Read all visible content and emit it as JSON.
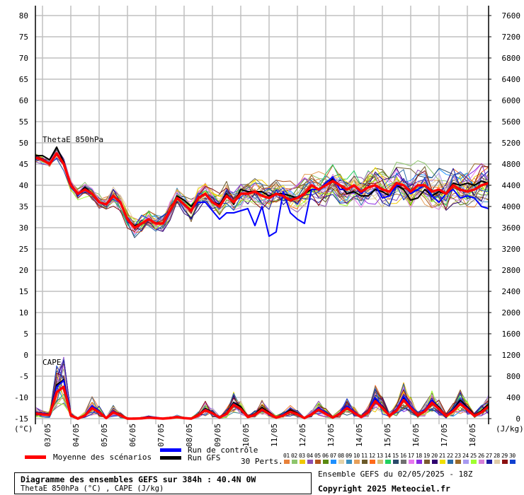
{
  "chart_data": {
    "type": "line",
    "title": "Diagramme des ensembles GEFS sur 384h : 40.4N 0W",
    "subtitle": "ThetaE 850hPa (°C) , CAPE (J/kg)",
    "run_info": "Ensemble GEFS du 02/05/2025 - 18Z",
    "copyright": "Copyright 2025 Meteociel.fr",
    "panel_labels": {
      "thetae": "ThetaE 850hPa",
      "cape": "CAPE"
    },
    "left_axis": {
      "unit": "(°C)",
      "ylim": [
        -15,
        80
      ],
      "ticks": [
        80,
        75,
        70,
        65,
        60,
        55,
        50,
        45,
        40,
        35,
        30,
        25,
        20,
        15,
        10,
        5,
        0,
        -5,
        -10,
        -15
      ]
    },
    "right_axis": {
      "unit": "(J/kg)",
      "ylim": [
        0,
        7600
      ],
      "ticks": [
        7600,
        7200,
        6800,
        6400,
        6000,
        5600,
        5200,
        4800,
        4400,
        4000,
        3600,
        3200,
        2800,
        2400,
        2000,
        1600,
        1200,
        800,
        400,
        0
      ]
    },
    "x_step_hours": 6,
    "x_range_hours": [
      0,
      384
    ],
    "x_tick_labels": [
      "03/05",
      "04/05",
      "05/05",
      "06/05",
      "07/05",
      "08/05",
      "09/05",
      "10/05",
      "11/05",
      "12/05",
      "13/05",
      "14/05",
      "15/05",
      "16/05",
      "17/05",
      "18/05"
    ],
    "grid": true,
    "series": [
      {
        "name": "Moyenne des scénarios",
        "color": "#ff0000",
        "thetae": [
          46.5,
          46,
          45,
          47.5,
          45,
          40,
          38,
          39,
          38,
          36,
          35.5,
          37.5,
          36,
          32,
          30,
          31,
          32,
          31,
          31,
          34,
          37,
          35.5,
          34,
          37,
          38,
          36,
          35,
          37.5,
          36,
          38,
          38,
          38.5,
          37.5,
          37,
          38,
          37.5,
          36.5,
          37,
          38,
          40,
          39,
          40,
          41,
          40,
          39,
          40,
          38.5,
          39.5,
          40,
          39,
          38.5,
          40.5,
          40,
          38.5,
          40,
          40,
          38.5,
          39,
          38,
          40,
          39,
          38.5,
          39,
          40,
          40.5
        ],
        "cape": [
          100,
          80,
          70,
          500,
          600,
          60,
          0,
          60,
          200,
          120,
          10,
          120,
          60,
          0,
          0,
          5,
          20,
          10,
          0,
          10,
          30,
          10,
          0,
          60,
          160,
          100,
          20,
          90,
          260,
          180,
          30,
          70,
          170,
          90,
          20,
          60,
          130,
          80,
          10,
          80,
          170,
          90,
          20,
          90,
          200,
          110,
          30,
          120,
          330,
          200,
          60,
          150,
          350,
          200,
          60,
          140,
          300,
          180,
          50,
          140,
          280,
          170,
          50,
          120,
          230
        ]
      },
      {
        "name": "Run de contrôle",
        "color": "#0000ff",
        "offset_profile": [
          0,
          0,
          0,
          0,
          0,
          0,
          0,
          0,
          0,
          0,
          0,
          0,
          0,
          0,
          0,
          0,
          0,
          0,
          0,
          0,
          0,
          0,
          0,
          -1,
          -2,
          -2,
          -3,
          -4,
          -2.5,
          -4,
          -3.5,
          -8,
          -2.5,
          -9,
          -9,
          1,
          -3,
          -5,
          -7,
          -1,
          0,
          0.5,
          1,
          -1,
          0,
          0,
          -0.5,
          0,
          0,
          -2,
          -1,
          -0.5,
          0,
          -0.5,
          -1,
          0,
          -1,
          -3,
          0,
          -1,
          -2,
          -1,
          -2,
          -5,
          -6
        ]
      },
      {
        "name": "Run GFS",
        "color": "#000000",
        "offset_profile": [
          0.5,
          1,
          1,
          1.5,
          0.5,
          0,
          0,
          0.5,
          0,
          0,
          0,
          0,
          0,
          0,
          0.5,
          0,
          0,
          0,
          0,
          0,
          0.5,
          1,
          1,
          0,
          0,
          0,
          0.5,
          0.5,
          -0.5,
          1,
          0.5,
          0,
          1,
          0.5,
          0,
          0.5,
          1,
          0,
          0,
          -1,
          0,
          0,
          0.5,
          0,
          -1,
          -1.5,
          -1,
          -2,
          -1,
          -0.5,
          -1,
          -0.5,
          -1,
          -2,
          -3,
          -1,
          -1,
          -0.5,
          0,
          0.5,
          1,
          2,
          1,
          1,
          0
        ]
      }
    ],
    "perturbations": {
      "label": "30 Perts.",
      "ids": [
        "01",
        "02",
        "03",
        "04",
        "05",
        "06",
        "07",
        "08",
        "09",
        "10",
        "11",
        "12",
        "13",
        "14",
        "15",
        "16",
        "17",
        "18",
        "19",
        "20",
        "21",
        "22",
        "23",
        "24",
        "25",
        "26",
        "27",
        "28",
        "29",
        "30"
      ],
      "colors": [
        "#e8813a",
        "#8dc56c",
        "#f0c800",
        "#8c4fb0",
        "#b3551c",
        "#5a8a10",
        "#1e90ff",
        "#e6d3a8",
        "#3a8fbf",
        "#e6a05a",
        "#6b5a2a",
        "#ff6a1a",
        "#d4c07a",
        "#20d060",
        "#2a4a6a",
        "#707070",
        "#e878f0",
        "#8a2be2",
        "#7a5a30",
        "#300070",
        "#f0e000",
        "#2a6aa8",
        "#9a6a2a",
        "#a89af0",
        "#a0ff30",
        "#d880d8",
        "#1a1aa0",
        "#e0cca8",
        "#8b1010",
        "#1040d0"
      ]
    },
    "legend": {
      "mean": "Moyenne des scénarios",
      "control": "Run de contrôle",
      "gfs": "Run GFS"
    }
  }
}
